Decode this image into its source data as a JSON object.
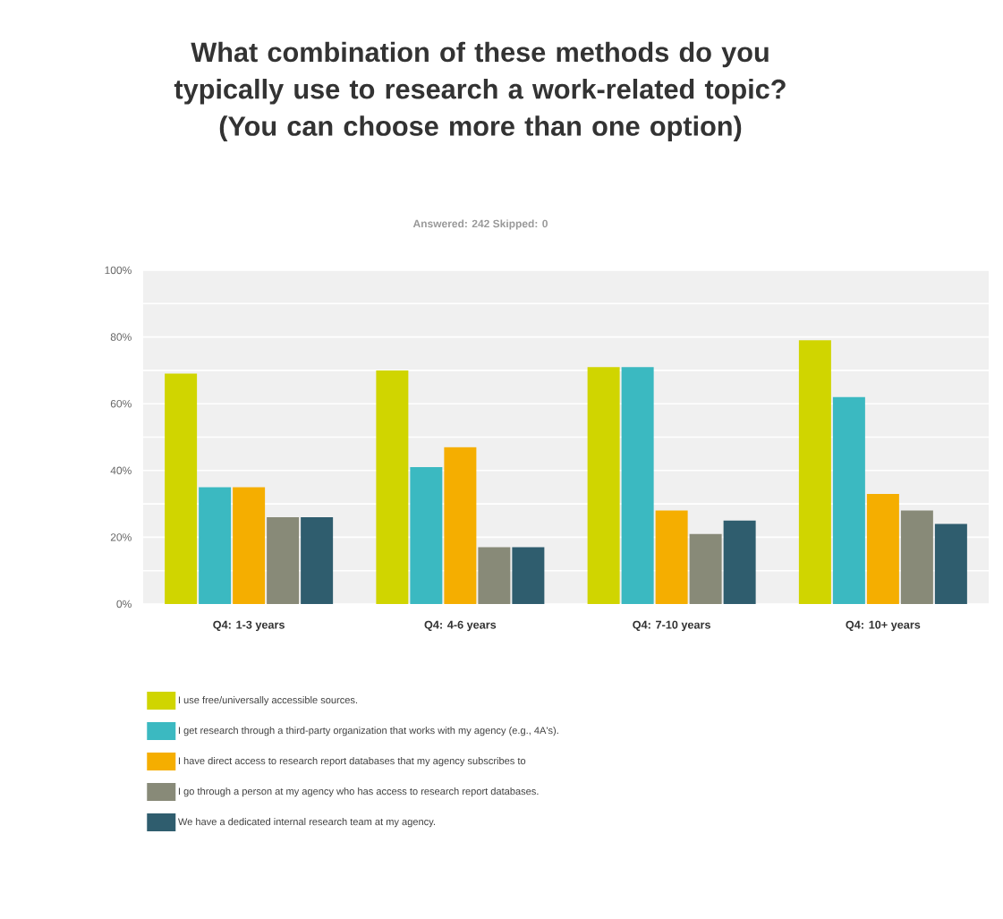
{
  "chart_data": {
    "type": "bar",
    "title": "What combination of these methods do you typically use to research a work-related topic? (You can choose more than one option)",
    "subtitle": "Answered: 242    Skipped: 0",
    "categories": [
      "Q4: 1-3 years",
      "Q4: 4-6 years",
      "Q4: 7-10 years",
      "Q4: 10+ years"
    ],
    "series": [
      {
        "name": "I use free/universally accessible sources.",
        "color": "#d0d500",
        "values": [
          69,
          70,
          71,
          79
        ]
      },
      {
        "name": "I get research through a third-party organization that works with my agency (e.g., 4A's).",
        "color": "#3bb9c1",
        "values": [
          35,
          41,
          71,
          62
        ]
      },
      {
        "name": "I have direct access to research report databases that my agency subscribes to",
        "color": "#f5ae00",
        "values": [
          35,
          47,
          28,
          33
        ]
      },
      {
        "name": "I go through a person at my agency who has access to research report databases.",
        "color": "#888a78",
        "values": [
          26,
          17,
          21,
          28
        ]
      },
      {
        "name": "We have a dedicated internal research team at my agency.",
        "color": "#2f5d6e",
        "values": [
          26,
          17,
          25,
          24
        ]
      }
    ],
    "ylim": [
      0,
      100
    ],
    "yticks": [
      {
        "value": 0,
        "label": "0%"
      },
      {
        "value": 10,
        "label": null
      },
      {
        "value": 20,
        "label": "20%"
      },
      {
        "value": 30,
        "label": null
      },
      {
        "value": 40,
        "label": "40%"
      },
      {
        "value": 50,
        "label": null
      },
      {
        "value": 60,
        "label": "60%"
      },
      {
        "value": 70,
        "label": null
      },
      {
        "value": 80,
        "label": "80%"
      },
      {
        "value": 90,
        "label": null
      },
      {
        "value": 100,
        "label": "100%"
      }
    ],
    "grid": "y",
    "legend": "bottom"
  }
}
